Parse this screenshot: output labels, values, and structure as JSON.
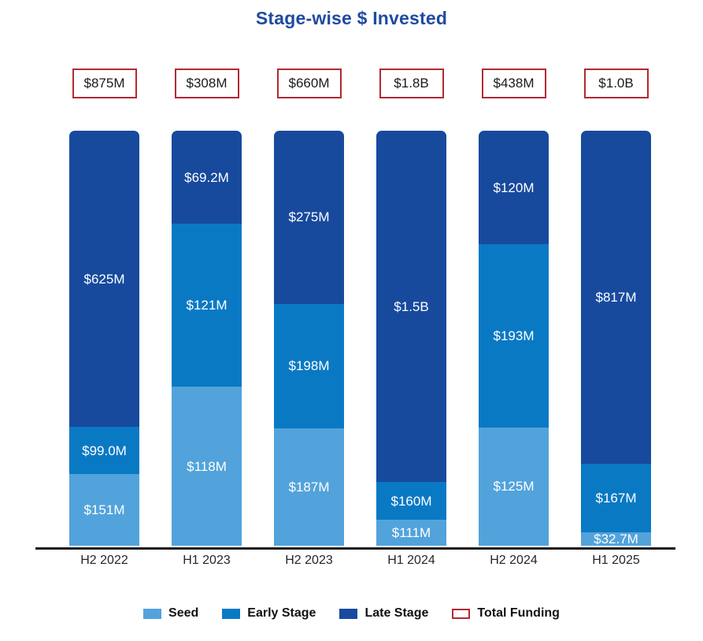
{
  "title": "Stage-wise $ Invested",
  "colors": {
    "seed": "#52a3db",
    "early": "#0a79c4",
    "late": "#174a9d",
    "total_border": "#b02a33",
    "title": "#1e4b9f",
    "axis": "#1a1a1a"
  },
  "legend": [
    {
      "key": "seed",
      "label": "Seed"
    },
    {
      "key": "early",
      "label": "Early Stage"
    },
    {
      "key": "late",
      "label": "Late Stage"
    },
    {
      "key": "total",
      "label": "Total Funding"
    }
  ],
  "chart_data": {
    "type": "bar",
    "subtype": "stacked-normalized-equal-height",
    "title": "Stage-wise $ Invested",
    "categories": [
      "H2 2022",
      "H1 2023",
      "H2 2023",
      "H1 2024",
      "H2 2024",
      "H1 2025"
    ],
    "totals": [
      "$875M",
      "$308M",
      "$660M",
      "$1.8B",
      "$438M",
      "$1.0B"
    ],
    "values_unit": "USD millions",
    "series": [
      {
        "key": "seed",
        "name": "Seed",
        "values": [
          151,
          118,
          187,
          111,
          125,
          32.7
        ],
        "labels": [
          "$151M",
          "$118M",
          "$187M",
          "$111M",
          "$125M",
          "$32.7M"
        ]
      },
      {
        "key": "early",
        "name": "Early Stage",
        "values": [
          99.0,
          121,
          198,
          160,
          193,
          167
        ],
        "labels": [
          "$99.0M",
          "$121M",
          "$198M",
          "$160M",
          "$193M",
          "$167M"
        ]
      },
      {
        "key": "late",
        "name": "Late Stage",
        "values": [
          625,
          69.2,
          275,
          1500,
          120,
          817
        ],
        "labels": [
          "$625M",
          "$69.2M",
          "$275M",
          "$1.5B",
          "$120M",
          "$817M"
        ]
      }
    ],
    "legend_position": "bottom",
    "grid": false,
    "y_axis_visible": false,
    "segment_order_top_to_bottom": [
      "Late Stage",
      "Early Stage",
      "Seed"
    ]
  }
}
